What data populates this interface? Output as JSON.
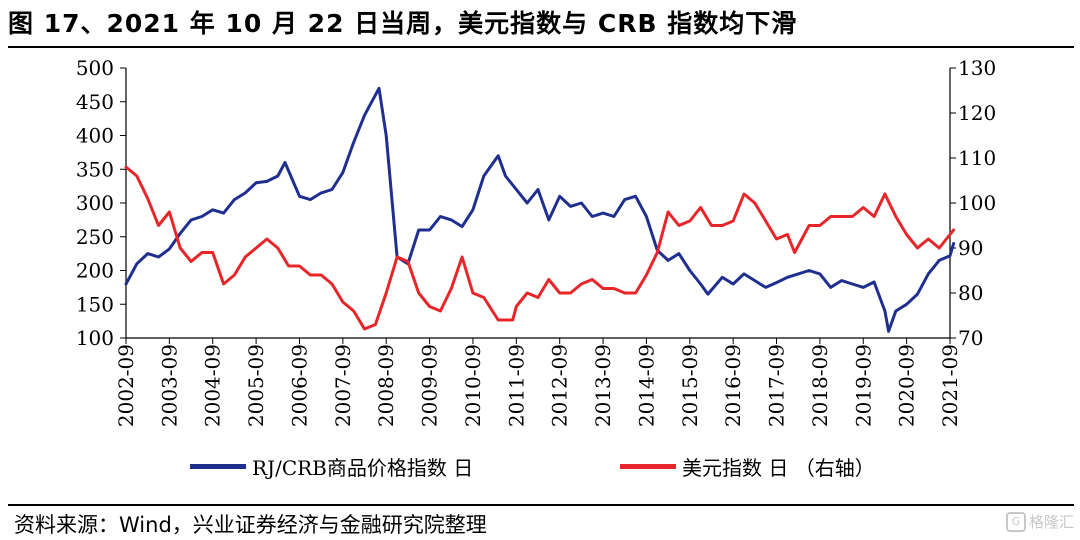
{
  "figure": {
    "title": "图 17、2021 年 10 月 22 日当周，美元指数与 CRB 指数均下滑",
    "source": "资料来源：Wind，兴业证券经济与金融研究院整理",
    "watermark": "格隆汇"
  },
  "chart_data": {
    "type": "line",
    "title": "",
    "xlabel": "",
    "ylabel": "",
    "y2label": "",
    "x_ticks": [
      "2002-09",
      "2003-09",
      "2004-09",
      "2005-09",
      "2006-09",
      "2007-09",
      "2008-09",
      "2009-09",
      "2010-09",
      "2011-09",
      "2012-09",
      "2013-09",
      "2014-09",
      "2015-09",
      "2016-09",
      "2017-09",
      "2018-09",
      "2019-09",
      "2020-09",
      "2021-09"
    ],
    "ylim": [
      100,
      500
    ],
    "yticks": [
      100,
      150,
      200,
      250,
      300,
      350,
      400,
      450,
      500
    ],
    "y2lim": [
      70,
      130
    ],
    "y2ticks": [
      70,
      80,
      90,
      100,
      110,
      120,
      130
    ],
    "grid": false,
    "legend_position": "bottom",
    "colors": {
      "crb": "#1f2f8f",
      "usd": "#e8262a"
    },
    "series": [
      {
        "name": "RJ/CRB商品价格指数 日",
        "axis": "left",
        "points": [
          [
            "2002-09",
            180
          ],
          [
            "2002-12",
            210
          ],
          [
            "2003-03",
            225
          ],
          [
            "2003-06",
            220
          ],
          [
            "2003-09",
            232
          ],
          [
            "2003-12",
            255
          ],
          [
            "2004-03",
            275
          ],
          [
            "2004-06",
            280
          ],
          [
            "2004-09",
            290
          ],
          [
            "2004-12",
            285
          ],
          [
            "2005-03",
            305
          ],
          [
            "2005-06",
            315
          ],
          [
            "2005-09",
            330
          ],
          [
            "2005-12",
            332
          ],
          [
            "2006-03",
            340
          ],
          [
            "2006-05",
            360
          ],
          [
            "2006-09",
            310
          ],
          [
            "2006-12",
            305
          ],
          [
            "2007-03",
            315
          ],
          [
            "2007-06",
            320
          ],
          [
            "2007-09",
            345
          ],
          [
            "2007-12",
            390
          ],
          [
            "2008-03",
            430
          ],
          [
            "2008-07",
            470
          ],
          [
            "2008-09",
            400
          ],
          [
            "2008-12",
            220
          ],
          [
            "2009-03",
            210
          ],
          [
            "2009-06",
            260
          ],
          [
            "2009-09",
            260
          ],
          [
            "2009-12",
            280
          ],
          [
            "2010-03",
            275
          ],
          [
            "2010-06",
            265
          ],
          [
            "2010-09",
            290
          ],
          [
            "2010-12",
            340
          ],
          [
            "2011-04",
            370
          ],
          [
            "2011-06",
            340
          ],
          [
            "2011-09",
            320
          ],
          [
            "2011-12",
            300
          ],
          [
            "2012-03",
            320
          ],
          [
            "2012-06",
            275
          ],
          [
            "2012-09",
            310
          ],
          [
            "2012-12",
            295
          ],
          [
            "2013-03",
            300
          ],
          [
            "2013-06",
            280
          ],
          [
            "2013-09",
            285
          ],
          [
            "2013-12",
            280
          ],
          [
            "2014-03",
            305
          ],
          [
            "2014-06",
            310
          ],
          [
            "2014-09",
            280
          ],
          [
            "2014-12",
            230
          ],
          [
            "2015-03",
            215
          ],
          [
            "2015-06",
            225
          ],
          [
            "2015-09",
            200
          ],
          [
            "2015-12",
            180
          ],
          [
            "2016-02",
            165
          ],
          [
            "2016-06",
            190
          ],
          [
            "2016-09",
            180
          ],
          [
            "2016-12",
            195
          ],
          [
            "2017-03",
            185
          ],
          [
            "2017-06",
            175
          ],
          [
            "2017-09",
            182
          ],
          [
            "2017-12",
            190
          ],
          [
            "2018-03",
            195
          ],
          [
            "2018-06",
            200
          ],
          [
            "2018-09",
            195
          ],
          [
            "2018-12",
            175
          ],
          [
            "2019-03",
            185
          ],
          [
            "2019-06",
            180
          ],
          [
            "2019-09",
            175
          ],
          [
            "2019-12",
            183
          ],
          [
            "2020-03",
            140
          ],
          [
            "2020-04",
            110
          ],
          [
            "2020-06",
            140
          ],
          [
            "2020-09",
            150
          ],
          [
            "2020-12",
            165
          ],
          [
            "2021-03",
            195
          ],
          [
            "2021-06",
            215
          ],
          [
            "2021-09",
            222
          ],
          [
            "2021-10",
            240
          ]
        ]
      },
      {
        "name": "美元指数 日 （右轴）",
        "axis": "right",
        "points": [
          [
            "2002-09",
            108
          ],
          [
            "2002-12",
            106
          ],
          [
            "2003-03",
            101
          ],
          [
            "2003-06",
            95
          ],
          [
            "2003-09",
            98
          ],
          [
            "2003-12",
            90
          ],
          [
            "2004-03",
            87
          ],
          [
            "2004-06",
            89
          ],
          [
            "2004-09",
            89
          ],
          [
            "2004-12",
            82
          ],
          [
            "2005-03",
            84
          ],
          [
            "2005-06",
            88
          ],
          [
            "2005-09",
            90
          ],
          [
            "2005-12",
            92
          ],
          [
            "2006-03",
            90
          ],
          [
            "2006-06",
            86
          ],
          [
            "2006-09",
            86
          ],
          [
            "2006-12",
            84
          ],
          [
            "2007-03",
            84
          ],
          [
            "2007-06",
            82
          ],
          [
            "2007-09",
            78
          ],
          [
            "2007-12",
            76
          ],
          [
            "2008-03",
            72
          ],
          [
            "2008-06",
            73
          ],
          [
            "2008-09",
            80
          ],
          [
            "2008-12",
            88
          ],
          [
            "2009-03",
            87
          ],
          [
            "2009-06",
            80
          ],
          [
            "2009-09",
            77
          ],
          [
            "2009-12",
            76
          ],
          [
            "2010-03",
            81
          ],
          [
            "2010-06",
            88
          ],
          [
            "2010-09",
            80
          ],
          [
            "2010-12",
            79
          ],
          [
            "2011-04",
            74
          ],
          [
            "2011-08",
            74
          ],
          [
            "2011-09",
            77
          ],
          [
            "2011-12",
            80
          ],
          [
            "2012-03",
            79
          ],
          [
            "2012-06",
            83
          ],
          [
            "2012-09",
            80
          ],
          [
            "2012-12",
            80
          ],
          [
            "2013-03",
            82
          ],
          [
            "2013-06",
            83
          ],
          [
            "2013-09",
            81
          ],
          [
            "2013-12",
            81
          ],
          [
            "2014-03",
            80
          ],
          [
            "2014-06",
            80
          ],
          [
            "2014-09",
            84
          ],
          [
            "2014-12",
            89
          ],
          [
            "2015-03",
            98
          ],
          [
            "2015-06",
            95
          ],
          [
            "2015-09",
            96
          ],
          [
            "2015-12",
            99
          ],
          [
            "2016-03",
            95
          ],
          [
            "2016-06",
            95
          ],
          [
            "2016-09",
            96
          ],
          [
            "2016-12",
            102
          ],
          [
            "2017-03",
            100
          ],
          [
            "2017-06",
            96
          ],
          [
            "2017-09",
            92
          ],
          [
            "2017-12",
            93
          ],
          [
            "2018-02",
            89
          ],
          [
            "2018-06",
            95
          ],
          [
            "2018-09",
            95
          ],
          [
            "2018-12",
            97
          ],
          [
            "2019-03",
            97
          ],
          [
            "2019-06",
            97
          ],
          [
            "2019-09",
            99
          ],
          [
            "2019-12",
            97
          ],
          [
            "2020-03",
            102
          ],
          [
            "2020-06",
            97
          ],
          [
            "2020-09",
            93
          ],
          [
            "2020-12",
            90
          ],
          [
            "2021-03",
            92
          ],
          [
            "2021-06",
            90
          ],
          [
            "2021-09",
            93
          ],
          [
            "2021-10",
            94
          ]
        ]
      }
    ]
  }
}
